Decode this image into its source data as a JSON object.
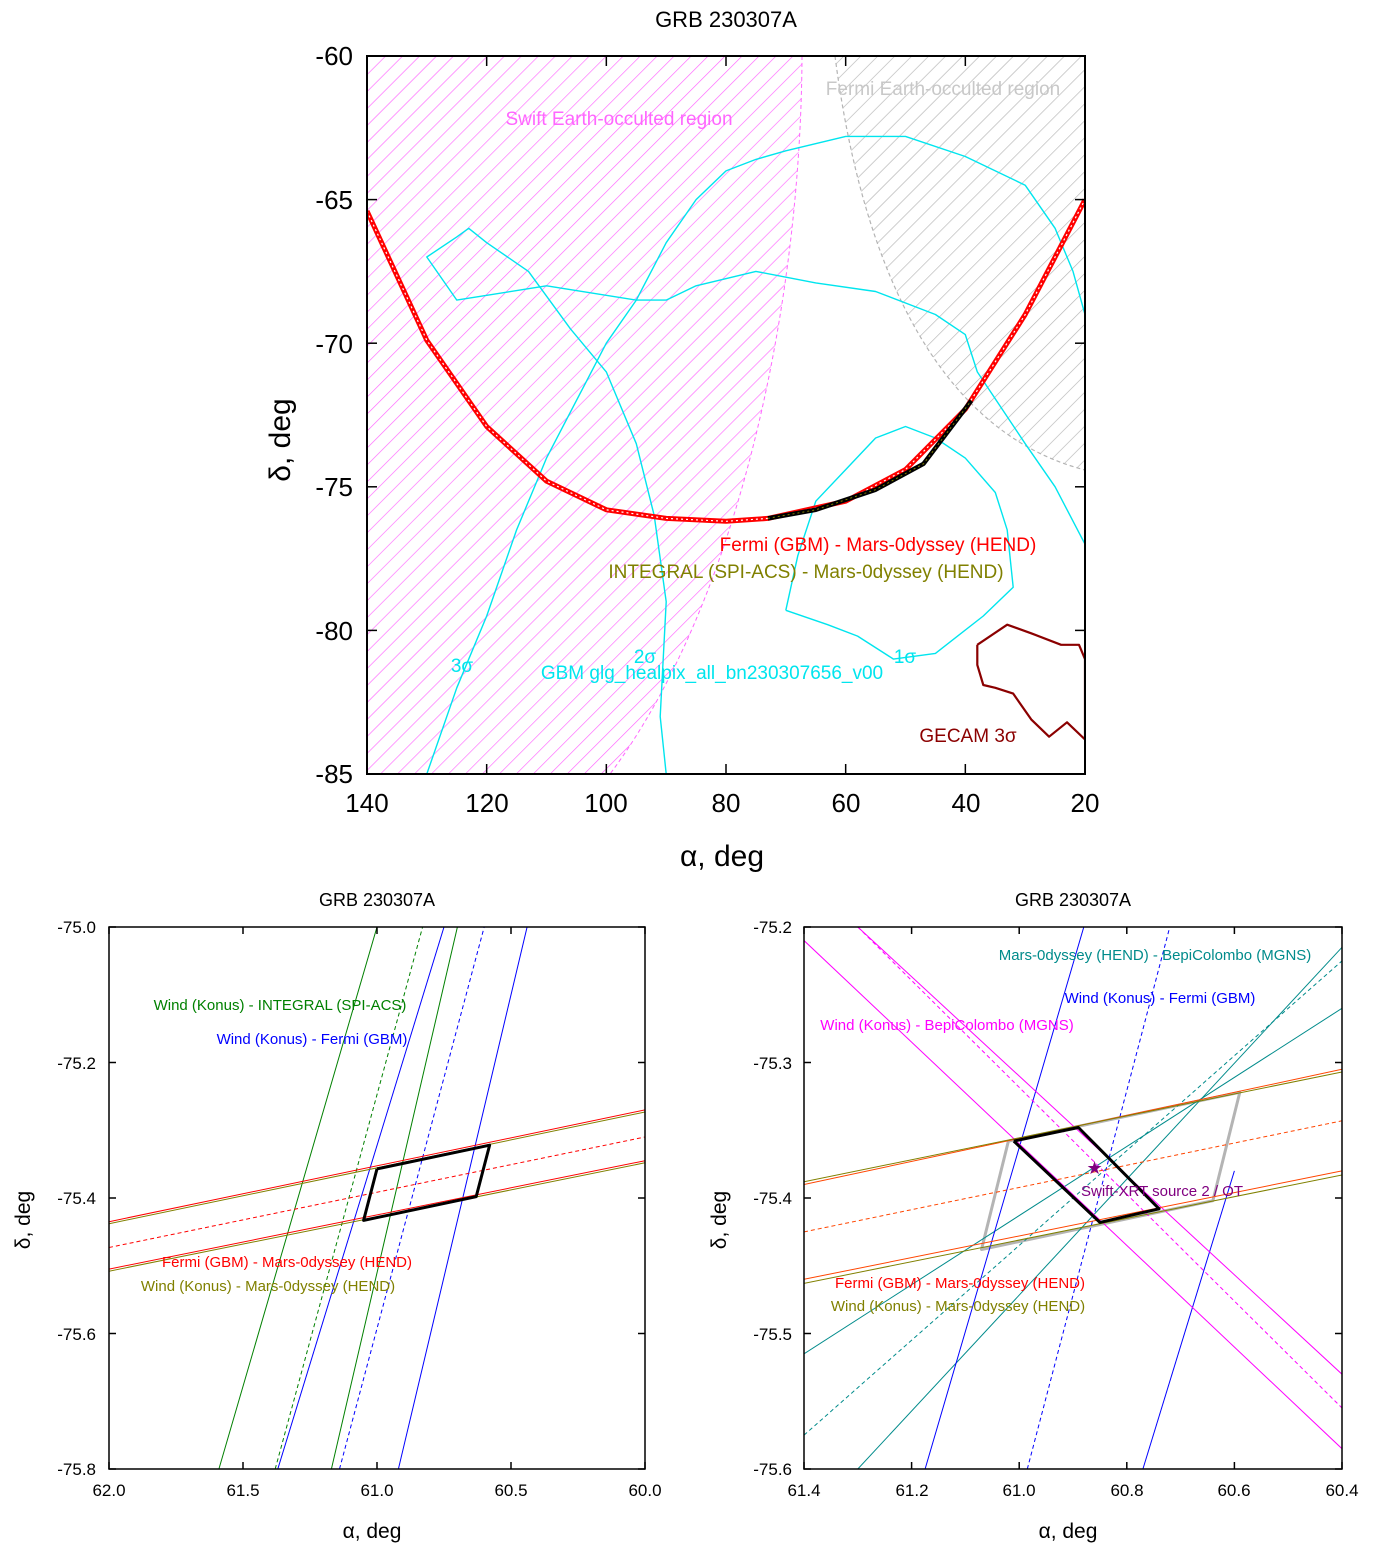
{
  "chart_data": [
    {
      "type": "line",
      "title": "GRB 230307A",
      "xlabel": "α, deg",
      "ylabel": "δ, deg",
      "xlim": [
        140,
        20
      ],
      "ylim": [
        -85,
        -60
      ],
      "x_ticks": [
        "140",
        "120",
        "100",
        "80",
        "60",
        "40",
        "20"
      ],
      "y_ticks": [
        "-60",
        "-65",
        "-70",
        "-75",
        "-80",
        "-85"
      ],
      "grid": false,
      "regions": [
        {
          "name": "Swift Earth-occulted region",
          "color": "#ff66ff"
        },
        {
          "name": "Fermi Earth-occulted region",
          "color": "#b4b4b4"
        }
      ],
      "annulus": {
        "name": "Fermi (GBM) - Mars-0dyssey (HEND)",
        "color": "#ff0000",
        "points": [
          [
            140,
            -65.4
          ],
          [
            130,
            -69.9
          ],
          [
            120,
            -72.9
          ],
          [
            110,
            -74.8
          ],
          [
            100,
            -75.8
          ],
          [
            90,
            -76.1
          ],
          [
            80,
            -76.2
          ],
          [
            73,
            -76.1
          ],
          [
            60,
            -75.5
          ],
          [
            50,
            -74.4
          ],
          [
            40,
            -72.3
          ],
          [
            30,
            -69.0
          ],
          [
            20,
            -65.0
          ]
        ]
      },
      "segment": {
        "name": "INTEGRAL (SPI-ACS) - Mars-0dyssey (HEND)",
        "color": "#808000",
        "points": [
          [
            73,
            -76.1
          ],
          [
            65,
            -75.8
          ],
          [
            55,
            -75.1
          ],
          [
            47,
            -74.2
          ],
          [
            39,
            -72.0
          ]
        ]
      },
      "contours": [
        {
          "label": "1σ",
          "color": "#00e5ee",
          "points": [
            [
              70,
              -79.3
            ],
            [
              68,
              -77.4
            ],
            [
              65,
              -75.5
            ],
            [
              60,
              -74.4
            ],
            [
              55,
              -73.3
            ],
            [
              50,
              -72.9
            ],
            [
              45,
              -73.3
            ],
            [
              40,
              -74.0
            ],
            [
              35,
              -75.2
            ],
            [
              33,
              -76.5
            ],
            [
              32,
              -78.5
            ],
            [
              37,
              -79.5
            ],
            [
              45,
              -80.8
            ],
            [
              52,
              -81.0
            ],
            [
              58,
              -80.2
            ],
            [
              63,
              -79.8
            ],
            [
              70,
              -79.3
            ]
          ]
        },
        {
          "label": "2σ",
          "color": "#00e5ee",
          "points": [
            [
              90,
              -85.0
            ],
            [
              91,
              -83.0
            ],
            [
              90,
              -79.0
            ],
            [
              92,
              -76.0
            ],
            [
              95,
              -73.5
            ],
            [
              100,
              -71.0
            ],
            [
              106,
              -69.5
            ],
            [
              113,
              -67.5
            ],
            [
              120,
              -66.5
            ],
            [
              123,
              -66.0
            ],
            [
              125,
              -66.3
            ],
            [
              130,
              -67.0
            ],
            [
              125,
              -68.5
            ],
            [
              110,
              -68.0
            ],
            [
              95,
              -68.5
            ],
            [
              90,
              -68.5
            ],
            [
              85,
              -68.0
            ],
            [
              75,
              -67.5
            ],
            [
              65,
              -67.9
            ],
            [
              55,
              -68.2
            ],
            [
              45,
              -69.0
            ],
            [
              40,
              -69.7
            ],
            [
              38,
              -71.0
            ],
            [
              30,
              -73.5
            ],
            [
              25,
              -75.0
            ],
            [
              20,
              -77.0
            ]
          ]
        },
        {
          "label": "3σ",
          "color": "#00e5ee",
          "points": [
            [
              130,
              -85.0
            ],
            [
              125,
              -82.0
            ],
            [
              120,
              -79.5
            ],
            [
              115,
              -76.5
            ],
            [
              110,
              -74.0
            ],
            [
              105,
              -72.0
            ],
            [
              100,
              -70.0
            ],
            [
              95,
              -68.5
            ],
            [
              90,
              -66.5
            ],
            [
              85,
              -65.0
            ],
            [
              80,
              -64.0
            ],
            [
              75,
              -63.6
            ],
            [
              70,
              -63.3
            ],
            [
              60,
              -62.8
            ],
            [
              50,
              -62.8
            ],
            [
              40,
              -63.5
            ],
            [
              30,
              -64.5
            ],
            [
              25,
              -66.0
            ],
            [
              22,
              -67.5
            ],
            [
              20,
              -69.0
            ]
          ]
        }
      ],
      "gecam": {
        "name": "GECAM 3σ",
        "color": "#8b0000",
        "points": [
          [
            38,
            -80.5
          ],
          [
            33,
            -79.8
          ],
          [
            29,
            -80.1
          ],
          [
            24,
            -80.5
          ],
          [
            21,
            -80.5
          ],
          [
            20,
            -81.0
          ],
          [
            20,
            -83.8
          ],
          [
            23,
            -83.2
          ],
          [
            26,
            -83.7
          ],
          [
            29,
            -83.1
          ],
          [
            31,
            -82.5
          ],
          [
            32,
            -82.2
          ],
          [
            35,
            -82.0
          ],
          [
            37,
            -81.9
          ],
          [
            38,
            -81.2
          ],
          [
            38,
            -80.5
          ]
        ]
      },
      "labels": {
        "swift_region": "Swift Earth-occulted region",
        "fermi_region": "Fermi Earth-occulted region",
        "annulus": "Fermi (GBM) - Mars-0dyssey (HEND)",
        "segment": "INTEGRAL (SPI-ACS) - Mars-0dyssey (HEND)",
        "gbm": "GBM glg_healpix_all_bn230307656_v00",
        "gecam": "GECAM 3σ",
        "sigma1": "1σ",
        "sigma2": "2σ",
        "sigma3": "3σ"
      }
    },
    {
      "type": "line",
      "title": "GRB 230307A",
      "xlabel": "α, deg",
      "ylabel": "δ, deg",
      "xlim": [
        62.0,
        60.0
      ],
      "ylim": [
        -75.8,
        -75.0
      ],
      "x_ticks": [
        "62.0",
        "61.5",
        "61.0",
        "60.5",
        "60.0"
      ],
      "y_ticks": [
        "-75.0",
        "-75.2",
        "-75.4",
        "-75.6",
        "-75.8"
      ],
      "grid": false,
      "series": [
        {
          "name": "Wind (Konus) - INTEGRAL (SPI-ACS)",
          "color": "#008000",
          "lines": [
            {
              "x": [
                61.59,
                61.0
              ],
              "y": [
                -75.8,
                -75.0
              ]
            },
            {
              "x": [
                61.38,
                60.83
              ],
              "y": [
                -75.8,
                -75.0
              ]
            },
            {
              "x": [
                61.17,
                60.7
              ],
              "y": [
                -75.8,
                -75.0
              ]
            }
          ],
          "dashed_index": 1
        },
        {
          "name": "Wind (Konus) - Fermi (GBM)",
          "color": "#0000ff",
          "lines": [
            {
              "x": [
                61.37,
                60.75
              ],
              "y": [
                -75.8,
                -75.0
              ]
            },
            {
              "x": [
                61.14,
                60.6
              ],
              "y": [
                -75.8,
                -75.0
              ]
            },
            {
              "x": [
                60.92,
                60.44
              ],
              "y": [
                -75.8,
                -75.0
              ]
            }
          ],
          "dashed_index": 1
        },
        {
          "name": "Fermi (GBM) - Mars-0dyssey (HEND)",
          "color": "#ff0000",
          "lines": [
            {
              "x": [
                62.0,
                60.0
              ],
              "y": [
                -75.435,
                -75.27
              ]
            },
            {
              "x": [
                62.0,
                60.0
              ],
              "y": [
                -75.505,
                -75.345
              ]
            },
            {
              "x": [
                62.0,
                60.0
              ],
              "y": [
                -75.473,
                -75.31
              ]
            }
          ],
          "dashed_index": 2
        },
        {
          "name": "Wind (Konus) - Mars-0dyssey (HEND)",
          "color": "#808000",
          "lines": [
            {
              "x": [
                62.0,
                60.0
              ],
              "y": [
                -75.438,
                -75.273
              ]
            },
            {
              "x": [
                62.0,
                60.0
              ],
              "y": [
                -75.508,
                -75.348
              ]
            }
          ],
          "dashed_index": -1
        }
      ],
      "box": {
        "color": "#000000",
        "x": [
          61.0,
          60.58,
          60.63,
          61.05,
          61.0
        ],
        "y": [
          -75.357,
          -75.322,
          -75.398,
          -75.433,
          -75.357
        ]
      },
      "labels": {
        "konus_integral": "Wind (Konus) - INTEGRAL (SPI-ACS)",
        "konus_fermi": "Wind (Konus) - Fermi (GBM)",
        "fermi_hend": "Fermi (GBM) - Mars-0dyssey (HEND)",
        "konus_hend": "Wind (Konus) - Mars-0dyssey (HEND)"
      }
    },
    {
      "type": "line",
      "title": "GRB 230307A",
      "xlabel": "α, deg",
      "ylabel": "δ, deg",
      "xlim": [
        61.4,
        60.4
      ],
      "ylim": [
        -75.6,
        -75.2
      ],
      "x_ticks": [
        "61.4",
        "61.2",
        "61.0",
        "60.8",
        "60.6",
        "60.4"
      ],
      "y_ticks": [
        "-75.2",
        "-75.3",
        "-75.4",
        "-75.5",
        "-75.6"
      ],
      "grid": false,
      "series": [
        {
          "name": "Mars-0dyssey (HEND) - BepiColombo (MGNS)",
          "color": "#008b8b",
          "lines": [
            {
              "x": [
                61.4,
                60.4
              ],
              "y": [
                -75.515,
                -75.26
              ]
            },
            {
              "x": [
                61.3,
                60.4
              ],
              "y": [
                -75.6,
                -75.215
              ]
            },
            {
              "x": [
                61.4,
                60.4
              ],
              "y": [
                -75.575,
                -75.225
              ]
            }
          ],
          "dashed_index": 2
        },
        {
          "name": "Wind (Konus) - Fermi (GBM)",
          "color": "#0000ff",
          "lines": [
            {
              "x": [
                61.175,
                60.88
              ],
              "y": [
                -75.6,
                -75.2
              ]
            },
            {
              "x": [
                60.985,
                60.72
              ],
              "y": [
                -75.6,
                -75.2
              ]
            },
            {
              "x": [
                60.77,
                60.6
              ],
              "y": [
                -75.6,
                -75.38
              ]
            }
          ],
          "dashed_index": 1
        },
        {
          "name": "Wind (Konus) - BepiColombo (MGNS)",
          "color": "#ff00ff",
          "lines": [
            {
              "x": [
                61.4,
                60.4
              ],
              "y": [
                -75.21,
                -75.585
              ]
            },
            {
              "x": [
                61.3,
                60.4
              ],
              "y": [
                -75.2,
                -75.53
              ]
            },
            {
              "x": [
                61.3,
                60.4
              ],
              "y": [
                -75.2,
                -75.555
              ]
            }
          ],
          "dashed_index": 2
        },
        {
          "name": "Fermi (GBM) - Mars-0dyssey (HEND)",
          "color": "#ff4500",
          "lines": [
            {
              "x": [
                61.4,
                60.4
              ],
              "y": [
                -75.39,
                -75.305
              ]
            },
            {
              "x": [
                61.4,
                60.4
              ],
              "y": [
                -75.46,
                -75.38
              ]
            },
            {
              "x": [
                61.4,
                60.4
              ],
              "y": [
                -75.425,
                -75.343
              ]
            }
          ],
          "dashed_index": 2
        },
        {
          "name": "Wind (Konus) - Mars-0dyssey (HEND)",
          "color": "#808000",
          "lines": [
            {
              "x": [
                61.4,
                60.4
              ],
              "y": [
                -75.388,
                -75.307
              ]
            },
            {
              "x": [
                61.4,
                60.4
              ],
              "y": [
                -75.463,
                -75.383
              ]
            }
          ],
          "dashed_index": -1
        }
      ],
      "grey_box": {
        "color": "#b4b4b4",
        "x": [
          61.02,
          60.59,
          60.64,
          61.07,
          61.02
        ],
        "y": [
          -75.358,
          -75.322,
          -75.402,
          -75.438,
          -75.358
        ]
      },
      "box": {
        "color": "#000000",
        "x": [
          61.01,
          60.89,
          60.74,
          60.85,
          61.01
        ],
        "y": [
          -75.358,
          -75.348,
          -75.408,
          -75.418,
          -75.358
        ]
      },
      "marker": {
        "name": "Swift-XRT source 2 / OT",
        "color": "#800080",
        "x": 60.86,
        "y": -75.378,
        "symbol": "★"
      },
      "labels": {
        "hend_bepi": "Mars-0dyssey (HEND) - BepiColombo (MGNS)",
        "konus_fermi": "Wind (Konus) - Fermi (GBM)",
        "konus_bepi": "Wind (Konus) - BepiColombo (MGNS)",
        "ot": "Swift-XRT source 2 / OT",
        "fermi_hend": "Fermi (GBM) - Mars-0dyssey (HEND)",
        "konus_hend": "Wind (Konus) - Mars-0dyssey (HEND)"
      }
    }
  ]
}
